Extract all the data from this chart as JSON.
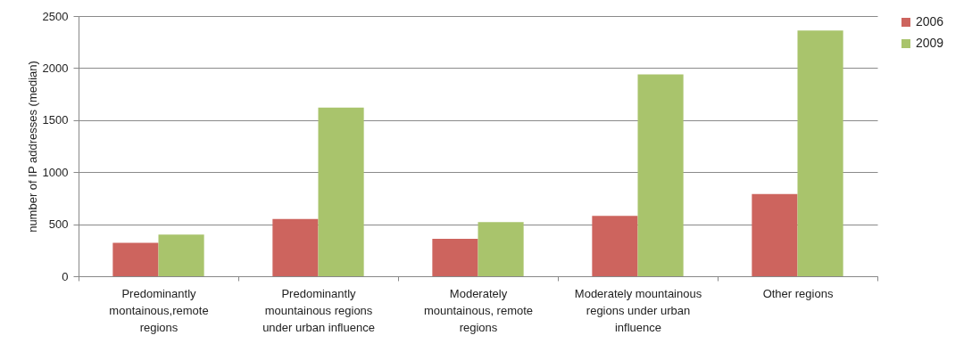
{
  "chart_data": {
    "type": "bar",
    "ylabel": "number of IP addresses (median)",
    "categories": [
      "Predominantly montainous,remote regions",
      "Predominantly mountainous regions under urban influence",
      "Moderately mountainous, remote regions",
      "Moderately mountainous regions under urban influence",
      "Other regions"
    ],
    "series": [
      {
        "name": "2006",
        "color": "#cd645e",
        "values": [
          320,
          550,
          360,
          580,
          790
        ]
      },
      {
        "name": "2009",
        "color": "#a9c46c",
        "values": [
          400,
          1620,
          520,
          1940,
          2360
        ]
      }
    ],
    "ylim": [
      0,
      2500
    ],
    "yticks": [
      0,
      500,
      1000,
      1500,
      2000,
      2500
    ],
    "grid": "y",
    "legend": "right"
  }
}
